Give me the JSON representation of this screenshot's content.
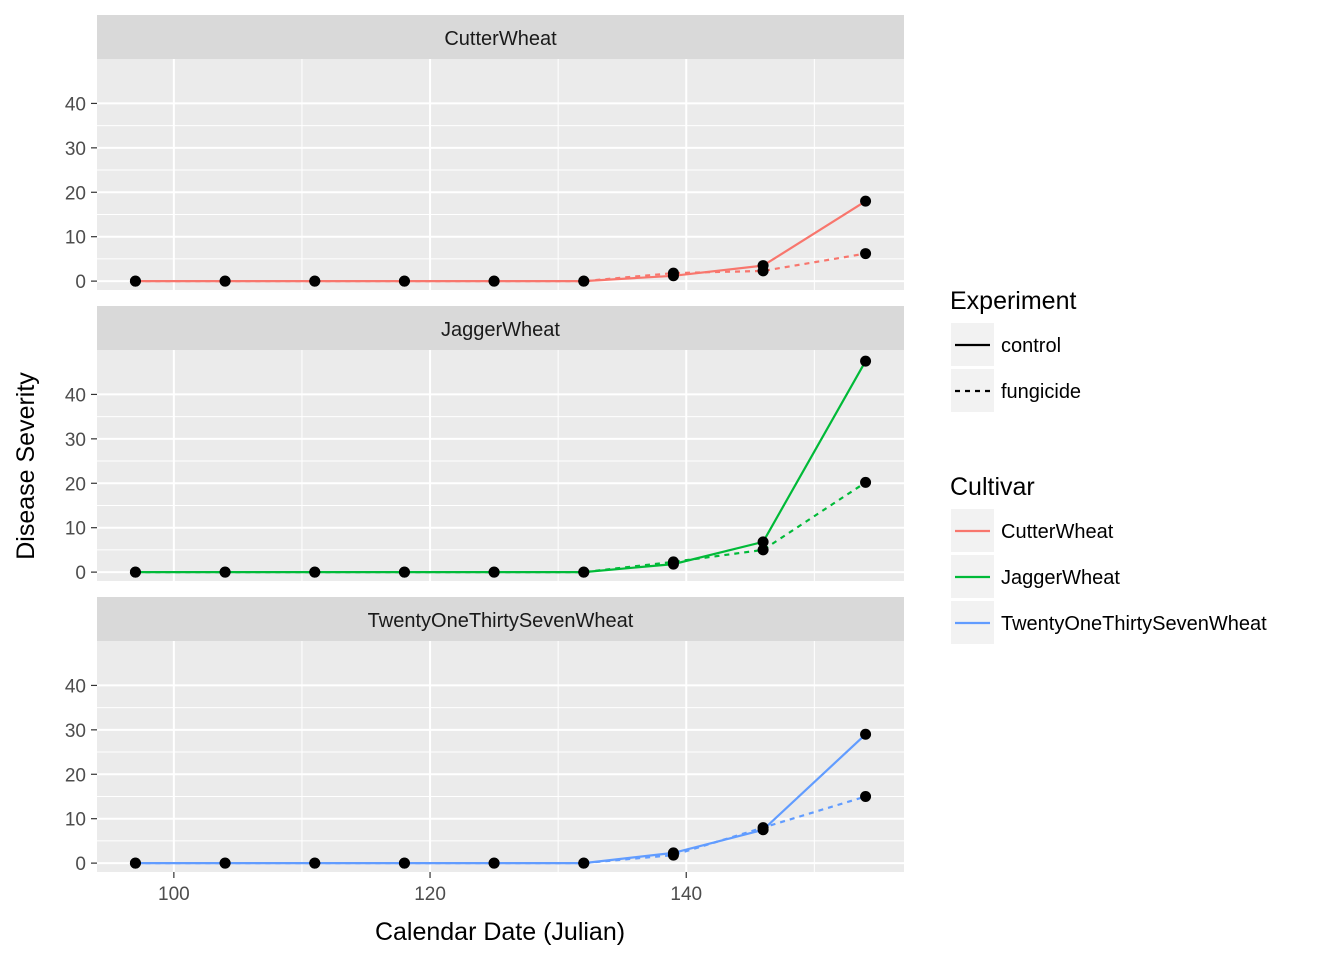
{
  "chart_data": {
    "type": "line",
    "xlabel": "Calendar Date (Julian)",
    "ylabel": "Disease Severity",
    "xlim": [
      94,
      157
    ],
    "ylim": [
      -2,
      50
    ],
    "x_ticks": [
      100,
      120,
      140
    ],
    "y_ticks": [
      0,
      10,
      20,
      30,
      40
    ],
    "grid": true,
    "x": [
      97,
      104,
      111,
      118,
      125,
      132,
      139,
      146,
      154
    ],
    "facets": [
      {
        "name": "CutterWheat",
        "color": "#F8766D",
        "series": [
          {
            "experiment": "control",
            "values": [
              0,
              0,
              0,
              0,
              0,
              0,
              1.2,
              3.5,
              18
            ]
          },
          {
            "experiment": "fungicide",
            "values": [
              0,
              0,
              0,
              0,
              0,
              0,
              1.8,
              2.3,
              6.2
            ]
          }
        ]
      },
      {
        "name": "JaggerWheat",
        "color": "#00BA38",
        "series": [
          {
            "experiment": "control",
            "values": [
              0,
              0,
              0,
              0,
              0,
              0,
              1.8,
              6.8,
              47.5
            ]
          },
          {
            "experiment": "fungicide",
            "values": [
              0,
              0,
              0,
              0,
              0,
              0,
              2.3,
              5.0,
              20.2
            ]
          }
        ]
      },
      {
        "name": "TwentyOneThirtySevenWheat",
        "color": "#619CFF",
        "series": [
          {
            "experiment": "control",
            "values": [
              0,
              0,
              0,
              0,
              0,
              0,
              2.3,
              7.5,
              29
            ]
          },
          {
            "experiment": "fungicide",
            "values": [
              0,
              0,
              0,
              0,
              0,
              0,
              1.8,
              8.0,
              15
            ]
          }
        ]
      }
    ],
    "legends": [
      {
        "title": "Experiment",
        "items": [
          {
            "label": "control",
            "linetype": "solid",
            "color": "#000000"
          },
          {
            "label": "fungicide",
            "linetype": "dashed",
            "color": "#000000"
          }
        ]
      },
      {
        "title": "Cultivar",
        "items": [
          {
            "label": "CutterWheat",
            "linetype": "solid",
            "color": "#F8766D"
          },
          {
            "label": "JaggerWheat",
            "linetype": "solid",
            "color": "#00BA38"
          },
          {
            "label": "TwentyOneThirtySevenWheat",
            "linetype": "solid",
            "color": "#619CFF"
          }
        ]
      }
    ],
    "legend_position": "right"
  }
}
